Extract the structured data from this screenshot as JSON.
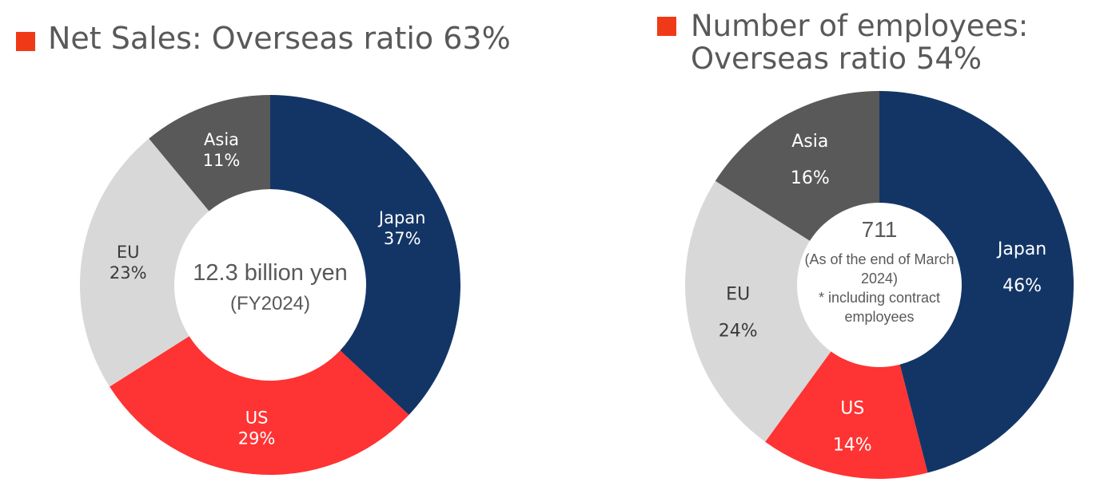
{
  "colors": {
    "Japan": "#133566",
    "US": "#fe3333",
    "EU": "#d8d8d8",
    "Asia": "#595959",
    "marker": "#f03a17",
    "title": "#595959",
    "label_dark": "#3a3a3a",
    "label_light": "#ffffff"
  },
  "chart_data": [
    {
      "type": "pie",
      "title_lines": [
        "Net Sales: Overseas ratio 63%"
      ],
      "center_lines": [
        "12.3 billion yen",
        "(FY2024)"
      ],
      "slices": [
        {
          "name": "Japan",
          "value": 37,
          "label": "Japan",
          "pct_label": "37%"
        },
        {
          "name": "US",
          "value": 29,
          "label": "US",
          "pct_label": "29%"
        },
        {
          "name": "EU",
          "value": 23,
          "label": "EU",
          "pct_label": "23%"
        },
        {
          "name": "Asia",
          "value": 11,
          "label": "Asia",
          "pct_label": "11%"
        }
      ]
    },
    {
      "type": "pie",
      "title_lines": [
        "Number of employees:",
        "Overseas ratio 54%"
      ],
      "center_lines": [
        "711",
        "(As of the end of March",
        "2024)",
        "* including contract",
        "employees"
      ],
      "slices": [
        {
          "name": "Japan",
          "value": 46,
          "label": "Japan",
          "pct_label": "46%"
        },
        {
          "name": "US",
          "value": 14,
          "label": "US",
          "pct_label": "14%"
        },
        {
          "name": "EU",
          "value": 24,
          "label": "EU",
          "pct_label": "24%"
        },
        {
          "name": "Asia",
          "value": 16,
          "label": "Asia",
          "pct_label": "16%"
        }
      ]
    }
  ]
}
